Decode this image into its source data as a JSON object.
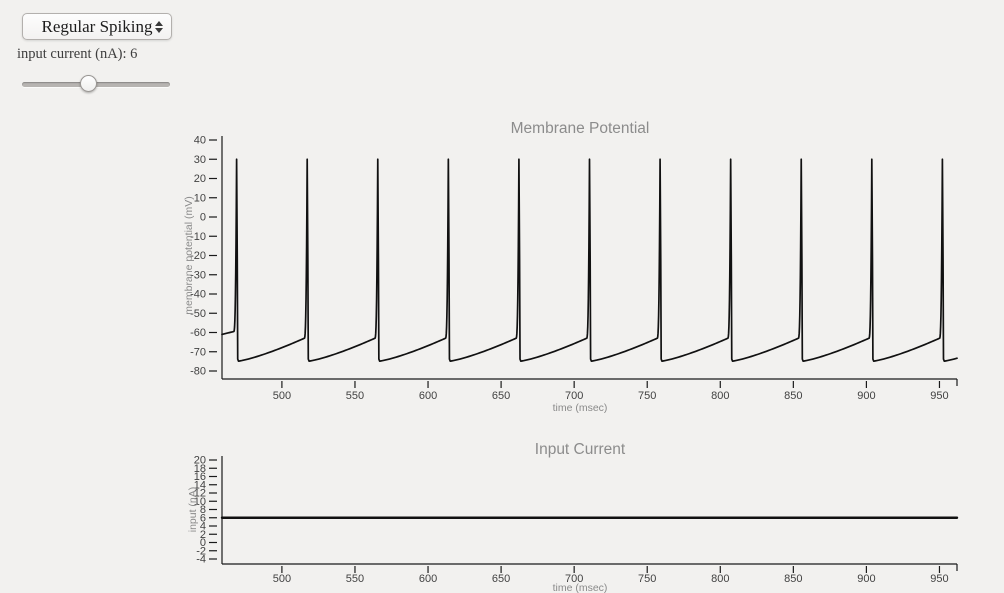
{
  "page": {
    "background": "#f2f1ef"
  },
  "controls": {
    "neuron_type": {
      "value": "Regular Spiking"
    },
    "input_current_label": "input current (nA): 6",
    "slider": {
      "value": 6,
      "percent": 44
    },
    "icons": {
      "select_spinner": "up-down-arrows-icon"
    }
  },
  "chart_data": [
    {
      "type": "line",
      "title": "Membrane Potential",
      "xlabel": "time (msec)",
      "ylabel": "membrane potential (mV)",
      "xlim": [
        459,
        962
      ],
      "ylim": [
        -80,
        40
      ],
      "xticks": [
        500,
        550,
        600,
        650,
        700,
        750,
        800,
        850,
        900,
        950
      ],
      "yticks": [
        40,
        30,
        20,
        10,
        0,
        -10,
        -20,
        -30,
        -40,
        -50,
        -60,
        -70,
        -80
      ],
      "grid": false,
      "legend": null,
      "line_color": "#111111",
      "series": [
        {
          "name": "membrane potential",
          "color": "#111111",
          "stroke_width": 1.7,
          "waveform": {
            "kind": "spike_train",
            "spike_times_ms": [
              469.0,
              517.3,
              565.6,
              613.9,
              662.2,
              710.5,
              758.8,
              807.1,
              855.4,
              903.7,
              952.0
            ],
            "peak_mV": 30,
            "reset_mV": -75,
            "threshold_mV": -63,
            "start_mV": -61,
            "interspike_interval_ms": 48.3,
            "upstroke_ms": 2
          }
        }
      ]
    },
    {
      "type": "line",
      "title": "Input Current",
      "xlabel": "time (msec)",
      "ylabel": "input (nA)",
      "xlim": [
        459,
        962
      ],
      "ylim": [
        -4,
        20
      ],
      "xticks": [
        500,
        550,
        600,
        650,
        700,
        750,
        800,
        850,
        900,
        950
      ],
      "yticks": [
        20,
        18,
        16,
        14,
        12,
        10,
        8,
        6,
        4,
        2,
        0,
        -2,
        -4
      ],
      "grid": false,
      "legend": null,
      "line_color": "#111111",
      "series": [
        {
          "name": "input current",
          "color": "#111111",
          "stroke_width": 2.4,
          "waveform": {
            "kind": "constant",
            "value": 6
          }
        }
      ]
    }
  ]
}
